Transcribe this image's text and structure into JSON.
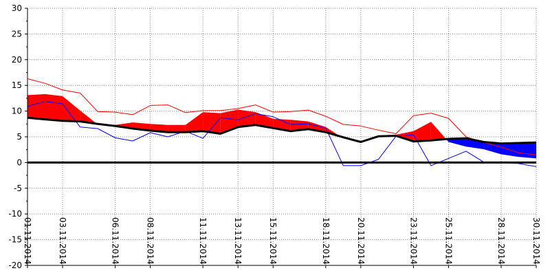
{
  "chart_data": {
    "type": "area",
    "title": "",
    "xlabel": "",
    "ylabel": "",
    "ylim": [
      -20,
      30
    ],
    "y_ticks": [
      30,
      25,
      20,
      15,
      10,
      5,
      0,
      -5,
      -10,
      -15,
      -20
    ],
    "grid": true,
    "x_tick_labels": [
      {
        "day": 1,
        "label": "01.11.2014"
      },
      {
        "day": 3,
        "label": "03.11.2014"
      },
      {
        "day": 6,
        "label": "06.11.2014"
      },
      {
        "day": 8,
        "label": "08.11.2014"
      },
      {
        "day": 11,
        "label": "11.11.2014"
      },
      {
        "day": 13,
        "label": "13.11.2014"
      },
      {
        "day": 15,
        "label": "15.11.2014"
      },
      {
        "day": 18,
        "label": "18.11.2014"
      },
      {
        "day": 20,
        "label": "20.11.2014"
      },
      {
        "day": 23,
        "label": "23.11.2014"
      },
      {
        "day": 25,
        "label": "25.11.2014"
      },
      {
        "day": 28,
        "label": "28.11.2014"
      },
      {
        "day": 30,
        "label": "30.11.2014"
      }
    ],
    "x": [
      1,
      2,
      3,
      4,
      5,
      6,
      7,
      8,
      9,
      10,
      11,
      12,
      13,
      14,
      15,
      16,
      17,
      18,
      19,
      20,
      21,
      22,
      23,
      24,
      25,
      26,
      27,
      28,
      29,
      30
    ],
    "series": [
      {
        "values": [
          8.7,
          8.4,
          8.1,
          8.0,
          7.5,
          7.1,
          6.6,
          6.2,
          5.9,
          5.9,
          6.1,
          5.6,
          6.9,
          7.3,
          6.7,
          6.1,
          6.5,
          5.9,
          4.9,
          4.0,
          5.1,
          5.2,
          4.1,
          4.3,
          4.6,
          4.7,
          4.0,
          3.7,
          3.8,
          3.9
        ]
      },
      {
        "values": [
          13.1,
          13.3,
          12.9,
          10.1,
          7.4,
          7.3,
          7.8,
          7.5,
          7.3,
          7.3,
          9.8,
          9.6,
          10.3,
          9.8,
          8.5,
          8.3,
          8.0,
          6.9,
          4.7,
          4.0,
          5.1,
          5.4,
          6.1,
          7.9,
          4.0,
          3.1,
          2.6,
          1.6,
          1.1,
          0.8
        ]
      },
      {
        "values": [
          16.3,
          15.4,
          14.1,
          13.5,
          9.9,
          9.8,
          9.3,
          11.1,
          11.2,
          9.7,
          10.1,
          10.1,
          10.5,
          11.2,
          9.8,
          9.9,
          10.2,
          9.0,
          7.4,
          7.1,
          6.3,
          5.6,
          9.1,
          9.6,
          8.6,
          5.0,
          3.9,
          3.0,
          1.9,
          1.5
        ]
      },
      {
        "values": [
          10.9,
          11.9,
          11.4,
          6.9,
          6.6,
          4.8,
          4.2,
          5.8,
          5.0,
          6.1,
          4.7,
          8.7,
          8.3,
          9.5,
          8.9,
          7.4,
          7.5,
          6.7,
          -0.6,
          -0.6,
          0.6,
          5.1,
          5.4,
          -0.6,
          0.8,
          2.2,
          0.1,
          0.0,
          -0.2,
          -0.8
        ]
      }
    ],
    "colors": {
      "band_positive": "#ff0000",
      "band_negative": "#0000ff",
      "line_red": "#ff0000",
      "line_blue": "#0000ff",
      "base_line": "#000000",
      "grid": "#808080"
    }
  }
}
